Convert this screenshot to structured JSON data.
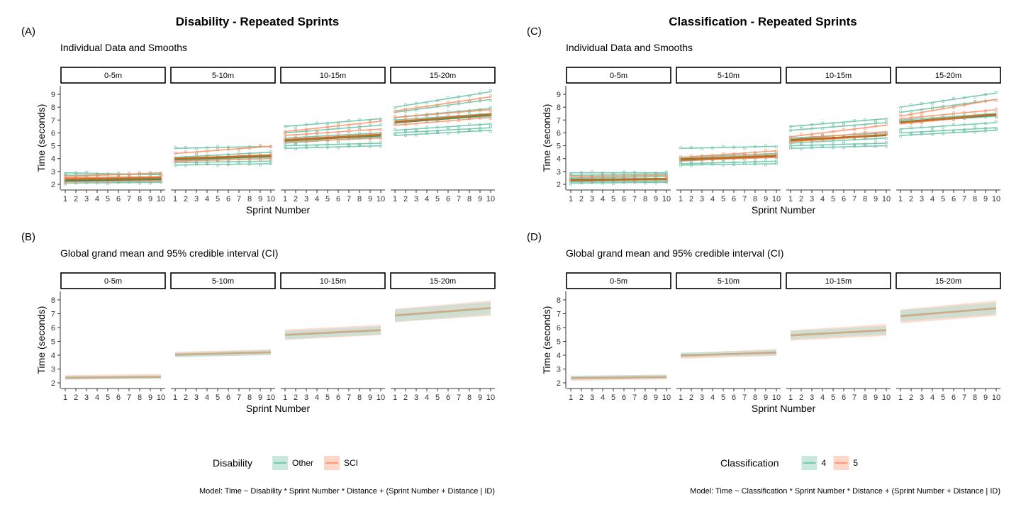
{
  "colors": {
    "green": "#66c2a5",
    "orange": "#fc8d62",
    "green_dark": "#2e8b57",
    "orange_dark": "#d2691e",
    "ribbon_green": "#b2e0d2",
    "ribbon_orange": "#fdc6b0",
    "axis": "#333333",
    "text": "#000000"
  },
  "chart_data": [
    {
      "type": "line",
      "title": "Disability - Repeated Sprints",
      "label": "(A)",
      "subtitle": "Individual Data and Smooths",
      "xlabel": "Sprint Number",
      "ylabel": "Time (seconds)",
      "ylim": [
        2,
        9
      ],
      "xlim": [
        1,
        10
      ],
      "yticks": [
        2,
        3,
        4,
        5,
        6,
        7,
        8,
        9
      ],
      "xticks": [
        1,
        2,
        3,
        4,
        5,
        6,
        7,
        8,
        9,
        10
      ],
      "facets": [
        {
          "name": "0-5m",
          "series": [
            {
              "group": "Other",
              "y1": 2.9,
              "y10": 2.75
            },
            {
              "group": "Other",
              "y1": 2.7,
              "y10": 2.8
            },
            {
              "group": "Other",
              "y1": 2.5,
              "y10": 2.6
            },
            {
              "group": "Other",
              "y1": 2.4,
              "y10": 2.5
            },
            {
              "group": "Other",
              "y1": 2.3,
              "y10": 2.35
            },
            {
              "group": "Other",
              "y1": 2.2,
              "y10": 2.25
            },
            {
              "group": "Other",
              "y1": 2.1,
              "y10": 2.15
            },
            {
              "group": "SCI",
              "y1": 2.6,
              "y10": 2.9
            },
            {
              "group": "SCI",
              "y1": 2.5,
              "y10": 2.6
            },
            {
              "group": "SCI",
              "y1": 2.4,
              "y10": 2.45
            },
            {
              "group": "SCI",
              "y1": 2.2,
              "y10": 2.3
            }
          ],
          "mean": {
            "Other": [
              2.3,
              2.4
            ],
            "SCI": [
              2.4,
              2.5
            ]
          }
        },
        {
          "name": "5-10m",
          "series": [
            {
              "group": "Other",
              "y1": 4.8,
              "y10": 4.95
            },
            {
              "group": "Other",
              "y1": 4.1,
              "y10": 4.5
            },
            {
              "group": "Other",
              "y1": 3.9,
              "y10": 4.1
            },
            {
              "group": "Other",
              "y1": 3.8,
              "y10": 4.2
            },
            {
              "group": "Other",
              "y1": 3.7,
              "y10": 3.8
            },
            {
              "group": "Other",
              "y1": 3.5,
              "y10": 3.6
            },
            {
              "group": "SCI",
              "y1": 4.4,
              "y10": 4.95
            },
            {
              "group": "SCI",
              "y1": 4.0,
              "y10": 4.3
            },
            {
              "group": "SCI",
              "y1": 3.9,
              "y10": 4.2
            },
            {
              "group": "SCI",
              "y1": 3.8,
              "y10": 4.0
            }
          ],
          "mean": {
            "Other": [
              3.95,
              4.2
            ],
            "SCI": [
              4.0,
              4.25
            ]
          }
        },
        {
          "name": "10-15m",
          "series": [
            {
              "group": "Other",
              "y1": 6.5,
              "y10": 7.1
            },
            {
              "group": "Other",
              "y1": 6.0,
              "y10": 6.6
            },
            {
              "group": "Other",
              "y1": 5.6,
              "y10": 6.0
            },
            {
              "group": "Other",
              "y1": 5.4,
              "y10": 5.8
            },
            {
              "group": "Other",
              "y1": 5.2,
              "y10": 5.7
            },
            {
              "group": "Other",
              "y1": 5.0,
              "y10": 5.2
            },
            {
              "group": "Other",
              "y1": 4.8,
              "y10": 5.0
            },
            {
              "group": "SCI",
              "y1": 6.1,
              "y10": 6.9
            },
            {
              "group": "SCI",
              "y1": 5.8,
              "y10": 6.3
            },
            {
              "group": "SCI",
              "y1": 5.5,
              "y10": 5.9
            },
            {
              "group": "SCI",
              "y1": 5.3,
              "y10": 5.6
            }
          ],
          "mean": {
            "Other": [
              5.4,
              5.8
            ],
            "SCI": [
              5.45,
              5.85
            ]
          }
        },
        {
          "name": "15-20m",
          "series": [
            {
              "group": "Other",
              "y1": 8.0,
              "y10": 9.2
            },
            {
              "group": "Other",
              "y1": 7.6,
              "y10": 8.6
            },
            {
              "group": "Other",
              "y1": 7.2,
              "y10": 7.9
            },
            {
              "group": "Other",
              "y1": 7.0,
              "y10": 7.5
            },
            {
              "group": "Other",
              "y1": 6.8,
              "y10": 7.3
            },
            {
              "group": "Other",
              "y1": 6.2,
              "y10": 6.7
            },
            {
              "group": "Other",
              "y1": 6.0,
              "y10": 6.4
            },
            {
              "group": "Other",
              "y1": 5.8,
              "y10": 6.2
            },
            {
              "group": "SCI",
              "y1": 7.7,
              "y10": 8.8
            },
            {
              "group": "SCI",
              "y1": 7.2,
              "y10": 7.8
            },
            {
              "group": "SCI",
              "y1": 6.9,
              "y10": 7.4
            },
            {
              "group": "SCI",
              "y1": 6.6,
              "y10": 7.2
            }
          ],
          "mean": {
            "Other": [
              6.8,
              7.4
            ],
            "SCI": [
              6.85,
              7.45
            ]
          }
        }
      ]
    },
    {
      "type": "area",
      "label": "(B)",
      "subtitle": "Global grand mean and 95% credible interval (CI)",
      "xlabel": "Sprint Number",
      "ylabel": "Time (seconds)",
      "ylim": [
        2,
        8
      ],
      "xlim": [
        1,
        10
      ],
      "yticks": [
        2,
        3,
        4,
        5,
        6,
        7,
        8
      ],
      "xticks": [
        1,
        2,
        3,
        4,
        5,
        6,
        7,
        8,
        9,
        10
      ],
      "legend_title": "Disability",
      "legend": [
        "Other",
        "SCI"
      ],
      "facets": [
        {
          "name": "0-5m",
          "Other": {
            "mean": [
              2.38,
              2.42
            ],
            "lo": [
              2.25,
              2.28
            ],
            "hi": [
              2.5,
              2.55
            ]
          },
          "SCI": {
            "mean": [
              2.37,
              2.44
            ],
            "lo": [
              2.22,
              2.3
            ],
            "hi": [
              2.55,
              2.65
            ]
          }
        },
        {
          "name": "5-10m",
          "Other": {
            "mean": [
              4.02,
              4.2
            ],
            "lo": [
              3.85,
              4.02
            ],
            "hi": [
              4.18,
              4.38
            ]
          },
          "SCI": {
            "mean": [
              4.05,
              4.22
            ],
            "lo": [
              3.88,
              4.0
            ],
            "hi": [
              4.25,
              4.42
            ]
          }
        },
        {
          "name": "10-15m",
          "Other": {
            "mean": [
              5.45,
              5.8
            ],
            "lo": [
              5.15,
              5.5
            ],
            "hi": [
              5.75,
              6.1
            ]
          },
          "SCI": {
            "mean": [
              5.48,
              5.83
            ],
            "lo": [
              5.1,
              5.45
            ],
            "hi": [
              5.85,
              6.2
            ]
          }
        },
        {
          "name": "15-20m",
          "Other": {
            "mean": [
              6.85,
              7.4
            ],
            "lo": [
              6.4,
              6.95
            ],
            "hi": [
              7.3,
              7.85
            ]
          },
          "SCI": {
            "mean": [
              6.9,
              7.42
            ],
            "lo": [
              6.4,
              6.85
            ],
            "hi": [
              7.35,
              7.95
            ]
          }
        }
      ],
      "caption": "Model: Time ~ Disability * Sprint Number * Distance + (Sprint Number + Distance | ID)"
    },
    {
      "type": "line",
      "title": "Classification - Repeated Sprints",
      "label": "(C)",
      "subtitle": "Individual Data and Smooths",
      "xlabel": "Sprint Number",
      "ylabel": "Time (seconds)",
      "ylim": [
        2,
        9
      ],
      "xlim": [
        1,
        10
      ],
      "yticks": [
        2,
        3,
        4,
        5,
        6,
        7,
        8,
        9
      ],
      "xticks": [
        1,
        2,
        3,
        4,
        5,
        6,
        7,
        8,
        9,
        10
      ],
      "facets": [
        {
          "name": "0-5m",
          "series": [
            {
              "group": "4",
              "y1": 2.9,
              "y10": 2.9
            },
            {
              "group": "4",
              "y1": 2.7,
              "y10": 2.8
            },
            {
              "group": "4",
              "y1": 2.5,
              "y10": 2.6
            },
            {
              "group": "4",
              "y1": 2.4,
              "y10": 2.45
            },
            {
              "group": "4",
              "y1": 2.3,
              "y10": 2.35
            },
            {
              "group": "4",
              "y1": 2.2,
              "y10": 2.25
            },
            {
              "group": "4",
              "y1": 2.1,
              "y10": 2.15
            },
            {
              "group": "5",
              "y1": 2.6,
              "y10": 2.7
            },
            {
              "group": "5",
              "y1": 2.4,
              "y10": 2.45
            },
            {
              "group": "5",
              "y1": 2.3,
              "y10": 2.35
            }
          ],
          "mean": {
            "4": [
              2.35,
              2.42
            ],
            "5": [
              2.3,
              2.42
            ]
          }
        },
        {
          "name": "5-10m",
          "series": [
            {
              "group": "4",
              "y1": 4.8,
              "y10": 4.95
            },
            {
              "group": "4",
              "y1": 4.1,
              "y10": 4.4
            },
            {
              "group": "4",
              "y1": 3.9,
              "y10": 4.1
            },
            {
              "group": "4",
              "y1": 3.8,
              "y10": 4.2
            },
            {
              "group": "4",
              "y1": 3.6,
              "y10": 3.8
            },
            {
              "group": "4",
              "y1": 3.5,
              "y10": 3.6
            },
            {
              "group": "5",
              "y1": 4.1,
              "y10": 4.6
            },
            {
              "group": "5",
              "y1": 4.0,
              "y10": 4.3
            },
            {
              "group": "5",
              "y1": 3.85,
              "y10": 4.1
            }
          ],
          "mean": {
            "4": [
              3.95,
              4.2
            ],
            "5": [
              3.9,
              4.2
            ]
          }
        },
        {
          "name": "10-15m",
          "series": [
            {
              "group": "4",
              "y1": 6.5,
              "y10": 7.1
            },
            {
              "group": "4",
              "y1": 6.2,
              "y10": 6.8
            },
            {
              "group": "4",
              "y1": 5.6,
              "y10": 6.0
            },
            {
              "group": "4",
              "y1": 5.4,
              "y10": 5.8
            },
            {
              "group": "4",
              "y1": 5.2,
              "y10": 5.6
            },
            {
              "group": "4",
              "y1": 5.0,
              "y10": 5.2
            },
            {
              "group": "4",
              "y1": 4.8,
              "y10": 5.0
            },
            {
              "group": "5",
              "y1": 5.7,
              "y10": 6.6
            },
            {
              "group": "5",
              "y1": 5.5,
              "y10": 6.1
            },
            {
              "group": "5",
              "y1": 5.3,
              "y10": 5.8
            }
          ],
          "mean": {
            "4": [
              5.45,
              5.82
            ],
            "5": [
              5.4,
              5.85
            ]
          }
        },
        {
          "name": "15-20m",
          "series": [
            {
              "group": "4",
              "y1": 8.0,
              "y10": 9.1
            },
            {
              "group": "4",
              "y1": 7.6,
              "y10": 8.6
            },
            {
              "group": "4",
              "y1": 7.0,
              "y10": 7.5
            },
            {
              "group": "4",
              "y1": 6.8,
              "y10": 7.3
            },
            {
              "group": "4",
              "y1": 6.3,
              "y10": 6.8
            },
            {
              "group": "4",
              "y1": 6.0,
              "y10": 6.4
            },
            {
              "group": "4",
              "y1": 5.8,
              "y10": 6.2
            },
            {
              "group": "5",
              "y1": 7.3,
              "y10": 8.6
            },
            {
              "group": "5",
              "y1": 7.1,
              "y10": 7.8
            },
            {
              "group": "5",
              "y1": 6.7,
              "y10": 7.4
            }
          ],
          "mean": {
            "4": [
              6.85,
              7.4
            ],
            "5": [
              6.8,
              7.45
            ]
          }
        }
      ]
    },
    {
      "type": "area",
      "label": "(D)",
      "subtitle": "Global grand mean and 95% credible interval (CI)",
      "xlabel": "Sprint Number",
      "ylabel": "Time (seconds)",
      "ylim": [
        2,
        8
      ],
      "xlim": [
        1,
        10
      ],
      "yticks": [
        2,
        3,
        4,
        5,
        6,
        7,
        8
      ],
      "xticks": [
        1,
        2,
        3,
        4,
        5,
        6,
        7,
        8,
        9,
        10
      ],
      "legend_title": "Classification",
      "legend": [
        "4",
        "5"
      ],
      "facets": [
        {
          "name": "0-5m",
          "4": {
            "mean": [
              2.36,
              2.42
            ],
            "lo": [
              2.22,
              2.28
            ],
            "hi": [
              2.52,
              2.58
            ]
          },
          "5": {
            "mean": [
              2.33,
              2.42
            ],
            "lo": [
              2.15,
              2.25
            ],
            "hi": [
              2.5,
              2.6
            ]
          }
        },
        {
          "name": "5-10m",
          "4": {
            "mean": [
              4.0,
              4.18
            ],
            "lo": [
              3.85,
              4.0
            ],
            "hi": [
              4.18,
              4.38
            ]
          },
          "5": {
            "mean": [
              3.95,
              4.2
            ],
            "lo": [
              3.75,
              3.95
            ],
            "hi": [
              4.15,
              4.45
            ]
          }
        },
        {
          "name": "10-15m",
          "4": {
            "mean": [
              5.45,
              5.8
            ],
            "lo": [
              5.15,
              5.5
            ],
            "hi": [
              5.75,
              6.1
            ]
          },
          "5": {
            "mean": [
              5.42,
              5.82
            ],
            "lo": [
              5.05,
              5.4
            ],
            "hi": [
              5.8,
              6.25
            ]
          }
        },
        {
          "name": "15-20m",
          "4": {
            "mean": [
              6.85,
              7.38
            ],
            "lo": [
              6.45,
              6.95
            ],
            "hi": [
              7.25,
              7.8
            ]
          },
          "5": {
            "mean": [
              6.8,
              7.4
            ],
            "lo": [
              6.3,
              6.85
            ],
            "hi": [
              7.3,
              7.95
            ]
          }
        }
      ],
      "caption": "Model: Time ~ Classification * Sprint Number * Distance + (Sprint Number + Distance | ID)"
    }
  ]
}
